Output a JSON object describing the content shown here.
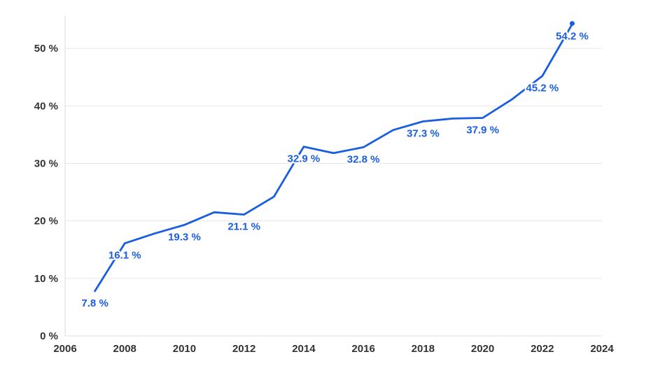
{
  "chart_data": {
    "type": "line",
    "title": "",
    "xlabel": "",
    "ylabel": "",
    "xlim": [
      2006,
      2024
    ],
    "ylim": [
      0,
      55
    ],
    "x_ticks": [
      2006,
      2008,
      2010,
      2012,
      2014,
      2016,
      2018,
      2020,
      2022,
      2024
    ],
    "y_ticks": [
      0,
      10,
      20,
      30,
      40,
      50
    ],
    "y_tick_labels": [
      "0 %",
      "10 %",
      "20 %",
      "30 %",
      "40 %",
      "50 %"
    ],
    "x_tick_labels": [
      "2006",
      "2008",
      "2010",
      "2012",
      "2014",
      "2016",
      "2018",
      "2020",
      "2022",
      "2024"
    ],
    "grid": "horizontal",
    "line_color": "#1a5ee0",
    "series": [
      {
        "x": [
          2007,
          2008,
          2009,
          2010,
          2011,
          2012,
          2013,
          2014,
          2015,
          2016,
          2017,
          2018,
          2019,
          2020,
          2021,
          2022,
          2023
        ],
        "values": [
          7.8,
          16.1,
          17.8,
          19.3,
          21.5,
          21.1,
          24.2,
          32.9,
          31.8,
          32.8,
          35.8,
          37.3,
          37.8,
          37.9,
          41.2,
          45.2,
          54.2
        ]
      }
    ],
    "data_labels": [
      {
        "x": 2007,
        "text": "7.8 %"
      },
      {
        "x": 2008,
        "text": "16.1 %"
      },
      {
        "x": 2010,
        "text": "19.3 %"
      },
      {
        "x": 2012,
        "text": "21.1 %"
      },
      {
        "x": 2014,
        "text": "32.9 %"
      },
      {
        "x": 2016,
        "text": "32.8 %"
      },
      {
        "x": 2018,
        "text": "37.3 %"
      },
      {
        "x": 2020,
        "text": "37.9 %"
      },
      {
        "x": 2022,
        "text": "45.2 %"
      },
      {
        "x": 2023,
        "text": "54.2 %"
      }
    ]
  }
}
